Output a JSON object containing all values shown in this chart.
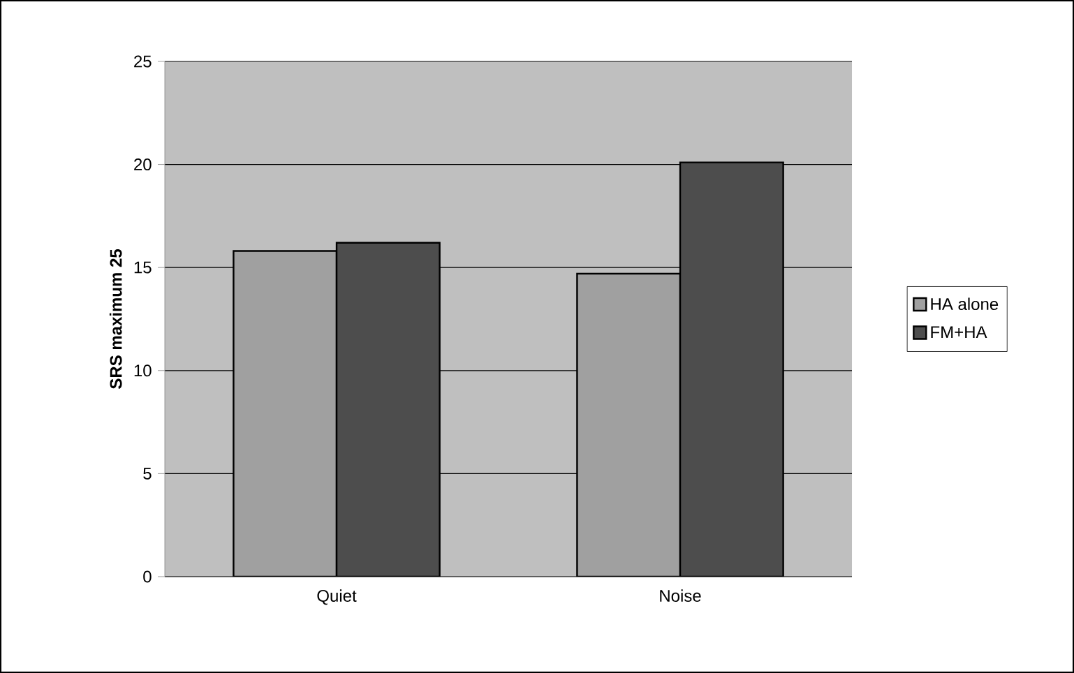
{
  "chart_data": {
    "type": "bar",
    "ylabel": "SRS maximum 25",
    "categories": [
      "Quiet",
      "Noise"
    ],
    "series": [
      {
        "name": "HA alone",
        "color": "#a0a0a0",
        "values": [
          15.8,
          14.7
        ]
      },
      {
        "name": "FM+HA",
        "color": "#4d4d4d",
        "values": [
          16.2,
          20.1
        ]
      }
    ],
    "ylim": [
      0,
      25
    ],
    "yticks": [
      0,
      5,
      10,
      15,
      20,
      25
    ],
    "grid": "y",
    "legend": "right"
  }
}
